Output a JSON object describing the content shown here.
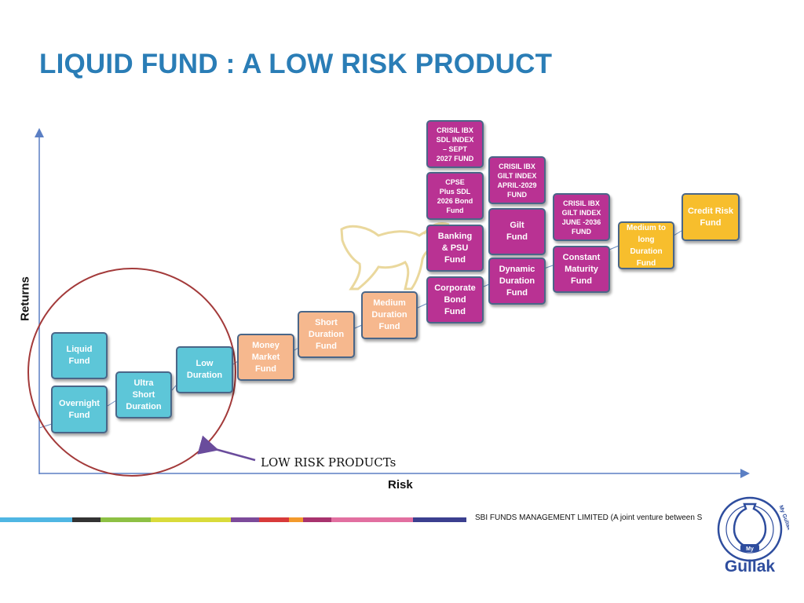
{
  "title": "LIQUID FUND : A LOW RISK PRODUCT",
  "axes": {
    "y_label": "Returns",
    "x_label": "Risk"
  },
  "annotation": "LOW RISK PRODUCTs",
  "nodes": {
    "liquid": "Liquid\nFund",
    "overnight": "Overnight\nFund",
    "ultra_short": "Ultra\nShort\nDuration",
    "low_duration": "Low\nDuration",
    "money_market": "Money\nMarket\nFund",
    "short_duration": "Short\nDuration\nFund",
    "medium_duration": "Medium\nDuration\nFund",
    "corporate_bond": "Corporate\nBond\nFund",
    "banking_psu": "Banking\n& PSU\nFund",
    "cpse": "CPSE\nPlus SDL\n2026 Bond\nFund",
    "crisil_sdl_2027": "CRISIL IBX\nSDL INDEX\n– SEPT\n2027 FUND",
    "dynamic_duration": "Dynamic\nDuration\nFund",
    "gilt": "Gilt\nFund",
    "crisil_gilt_2029": "CRISIL IBX\nGILT INDEX\nAPRIL-2029\nFUND",
    "constant_maturity": "Constant\nMaturity\nFund",
    "crisil_gilt_2036": "CRISIL IBX\nGILT INDEX\nJUNE -2036\nFUND",
    "medium_to_long": "Medium to\nlong\nDuration\nFund",
    "credit_risk": "Credit Risk\nFund"
  },
  "footer": {
    "text": "SBI FUNDS MANAGEMENT LIMITED (A joint venture between S"
  },
  "logo": {
    "my": "My",
    "brand": "Gullak",
    "ring_text": "My Gullak"
  },
  "colors": {
    "title": "#2A7DB6",
    "cyan": "#5DC6D8",
    "peach": "#F6B88E",
    "magenta": "#B93293",
    "gold": "#F7BE2D",
    "circle": "#A33A3A",
    "axis": "#5B7FC4",
    "logo": "#2E4D9E"
  }
}
